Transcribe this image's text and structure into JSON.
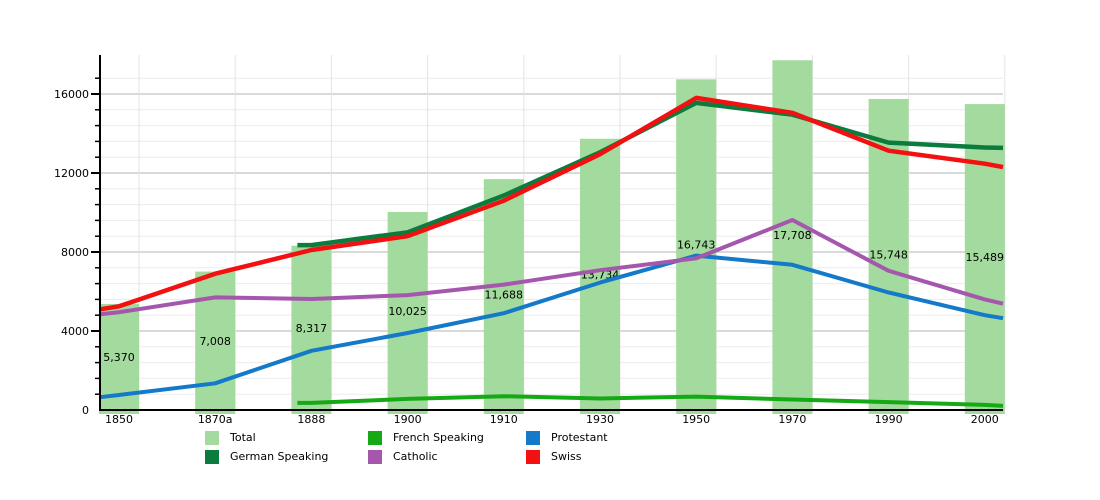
{
  "chart_data": {
    "type": "bar+line",
    "title": "",
    "categories": [
      "1850",
      "1870a",
      "1888",
      "1900",
      "1910",
      "1930",
      "1950",
      "1970",
      "1990",
      "2000"
    ],
    "y_axis": {
      "majors": [
        0,
        4000,
        8000,
        12000,
        16000
      ],
      "major_labels": [
        "0",
        "4000",
        "8000",
        "12000",
        "16000"
      ],
      "minor_step": 800,
      "max": 18000,
      "grid": "on"
    },
    "bars": {
      "name": "Total",
      "color": "#a3da9d",
      "values": [
        5370,
        7008,
        8317,
        10025,
        11688,
        13734,
        16743,
        17708,
        15748,
        15489
      ],
      "labels": [
        "5,370",
        "7,008",
        "8,317",
        "10,025",
        "11,688",
        "13,734",
        "16,743",
        "17,708",
        "15,748",
        "15,489"
      ]
    },
    "series": [
      {
        "name": "French Speaking",
        "color": "#15a915",
        "width": 4,
        "lead_in": true,
        "values": [
          null,
          null,
          360,
          560,
          700,
          580,
          680,
          530,
          400,
          260
        ],
        "edge_right": 210
      },
      {
        "name": "German Speaking",
        "color": "#0b7b3e",
        "width": 4.5,
        "lead_in": true,
        "values": [
          null,
          null,
          8350,
          9000,
          10860,
          13050,
          15550,
          14950,
          13540,
          13290
        ],
        "edge_right": 13270
      },
      {
        "name": "Protestant",
        "color": "#1379c8",
        "width": 4,
        "edge_left": 650,
        "values": [
          760,
          1350,
          3000,
          3900,
          4900,
          6450,
          7820,
          7350,
          5950,
          4800
        ],
        "edge_right": 4650
      },
      {
        "name": "Catholic",
        "color": "#a557ae",
        "width": 4,
        "edge_left": 4850,
        "values": [
          4950,
          5700,
          5620,
          5820,
          6350,
          7080,
          7680,
          9620,
          7050,
          5600
        ],
        "edge_right": 5380
      },
      {
        "name": "Swiss",
        "color": "#f21010",
        "width": 4.5,
        "edge_left": 5100,
        "values": [
          5250,
          6900,
          8100,
          8800,
          10600,
          12950,
          15800,
          15050,
          13130,
          12470
        ],
        "edge_right": 12300
      }
    ],
    "legend_position": "bottom"
  },
  "legend": {
    "items": [
      {
        "label": "Total",
        "color": "#a3da9d"
      },
      {
        "label": "German Speaking",
        "color": "#0b7b3e"
      },
      {
        "label": "French Speaking",
        "color": "#15a915"
      },
      {
        "label": "Catholic",
        "color": "#a557ae"
      },
      {
        "label": "Protestant",
        "color": "#1379c8"
      },
      {
        "label": "Swiss",
        "color": "#f21010"
      }
    ]
  }
}
